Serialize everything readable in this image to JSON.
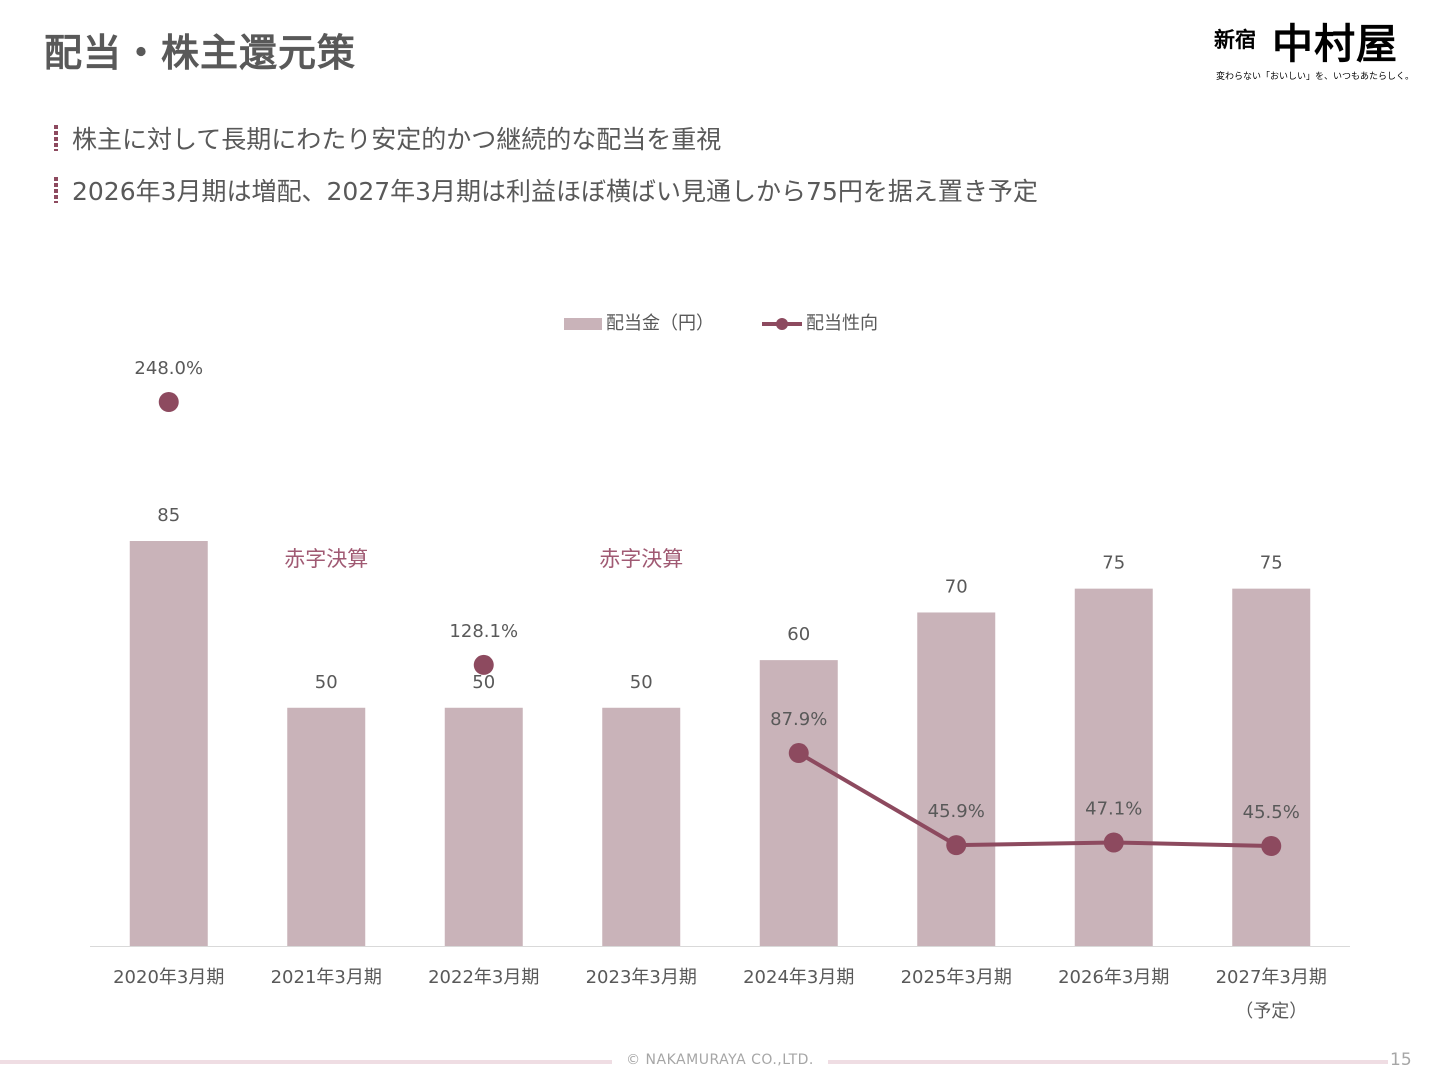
{
  "title": "配当・株主還元策",
  "logo": {
    "small_text": "新宿",
    "main_text": "中村屋",
    "tagline": "変わらない「おいしい」を、いつもあたらしく。"
  },
  "bullets": [
    "株主に対して長期にわたり安定的かつ継続的な配当を重視",
    "2026年3月期は増配、2027年3月期は利益ほぼ横ばい見通しから75円を据え置き予定"
  ],
  "chart_data": {
    "type": "bar",
    "categories": [
      "2020年3月期",
      "2021年3月期",
      "2022年3月期",
      "2023年3月期",
      "2024年3月期",
      "2025年3月期",
      "2026年3月期",
      "2027年3月期"
    ],
    "category_notes": [
      "",
      "",
      "",
      "",
      "",
      "",
      "",
      "（予定）"
    ],
    "series": [
      {
        "name": "配当金（円）",
        "type": "bar",
        "values": [
          85,
          50,
          50,
          50,
          60,
          70,
          75,
          75
        ],
        "labels": [
          "85",
          "50",
          "50",
          "50",
          "60",
          "70",
          "75",
          "75"
        ],
        "color": "#c9b3b9"
      },
      {
        "name": "配当性向",
        "type": "line",
        "values": [
          248.0,
          null,
          128.1,
          null,
          87.9,
          45.9,
          47.1,
          45.5
        ],
        "labels": [
          "248.0%",
          "",
          "128.1%",
          "",
          "87.9%",
          "45.9%",
          "47.1%",
          "45.5%"
        ],
        "connected_from_index": 4,
        "color": "#8d4a5f"
      }
    ],
    "annotations": [
      {
        "category_index": 1,
        "text": "赤字決算"
      },
      {
        "category_index": 3,
        "text": "赤字決算"
      }
    ],
    "annotation_color": "#a05a73",
    "legend_position": "top-center",
    "grid": false
  },
  "footer": {
    "copyright": "© NAKAMURAYA CO.,LTD.",
    "page": "15"
  }
}
